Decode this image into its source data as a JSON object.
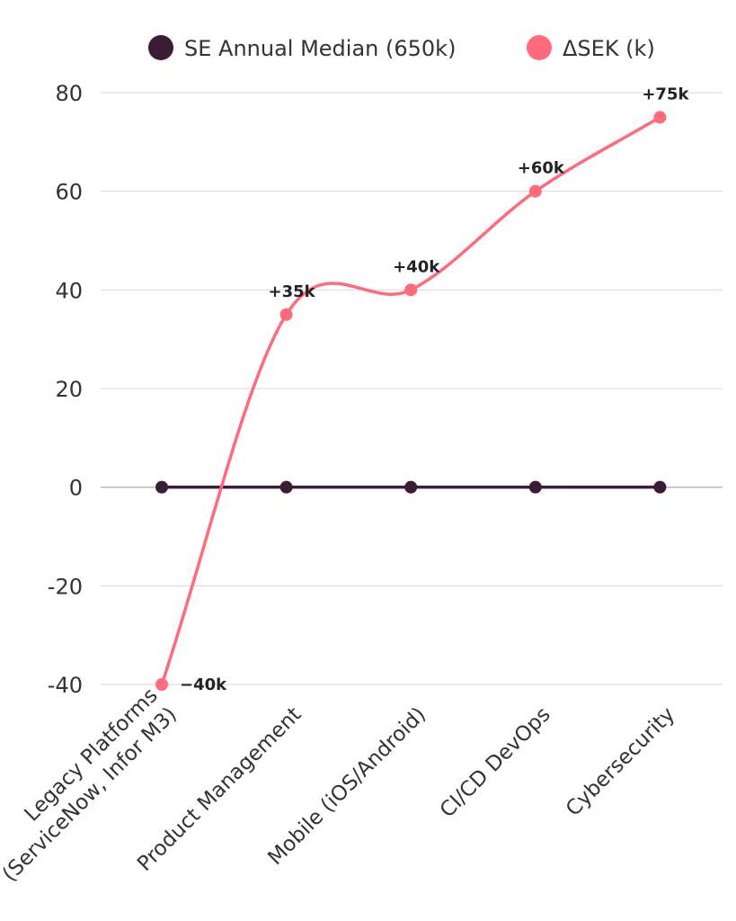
{
  "chart_data": {
    "type": "line",
    "title": "",
    "xlabel": "",
    "ylabel": "",
    "categories": [
      "Legacy Platforms\n(ServiceNow, Infor M3)",
      "Product Management",
      "Mobile (iOS/Android)",
      "CI/CD DevOps",
      "Cybersecurity"
    ],
    "series": [
      {
        "name": "SE Annual Median (650k)",
        "values": [
          0,
          0,
          0,
          0,
          0
        ],
        "color": "#3b1d36"
      },
      {
        "name": "ΔSEK (k)",
        "values": [
          -40,
          35,
          40,
          60,
          75
        ],
        "color": "#ff6b7b",
        "data_labels": [
          "−40k",
          "+35k",
          "+40k",
          "+60k",
          "+75k"
        ]
      }
    ],
    "ylim": [
      -40,
      80
    ],
    "yticks": [
      80,
      60,
      40,
      20,
      0,
      -20,
      -40
    ],
    "grid": true,
    "legend_position": "top-center"
  }
}
